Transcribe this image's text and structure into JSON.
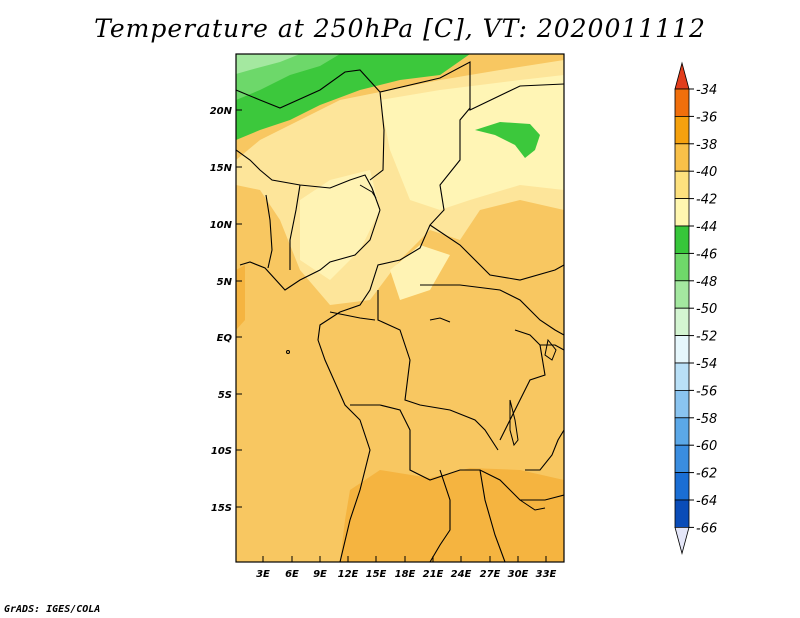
{
  "title": "Temperature at 250hPa [C], VT: 2020011112",
  "credit": "GrADS: IGES/COLA",
  "map": {
    "lat_labels": [
      "20N",
      "15N",
      "10N",
      "5N",
      "EQ",
      "5S",
      "10S",
      "15S"
    ],
    "lon_labels": [
      "3E",
      "6E",
      "9E",
      "12E",
      "15E",
      "18E",
      "21E",
      "24E",
      "27E",
      "30E",
      "33E"
    ]
  },
  "colorbar": {
    "labels": [
      "-34",
      "-36",
      "-38",
      "-40",
      "-42",
      "-44",
      "-46",
      "-48",
      "-50",
      "-52",
      "-54",
      "-56",
      "-58",
      "-60",
      "-62",
      "-64",
      "-66"
    ],
    "colors": [
      "#e23d1c",
      "#f06f0c",
      "#f5a10e",
      "#f8c049",
      "#fde17e",
      "#fff7b0",
      "#37c63a",
      "#6fd86a",
      "#a4e8a0",
      "#d4f5d2",
      "#e6f7fc",
      "#b9e0f7",
      "#8ac4f0",
      "#5ba8e8",
      "#3a8de0",
      "#1a6ed4",
      "#0a4cb8",
      "#0a1f7a",
      "#e4e6f8"
    ]
  }
}
